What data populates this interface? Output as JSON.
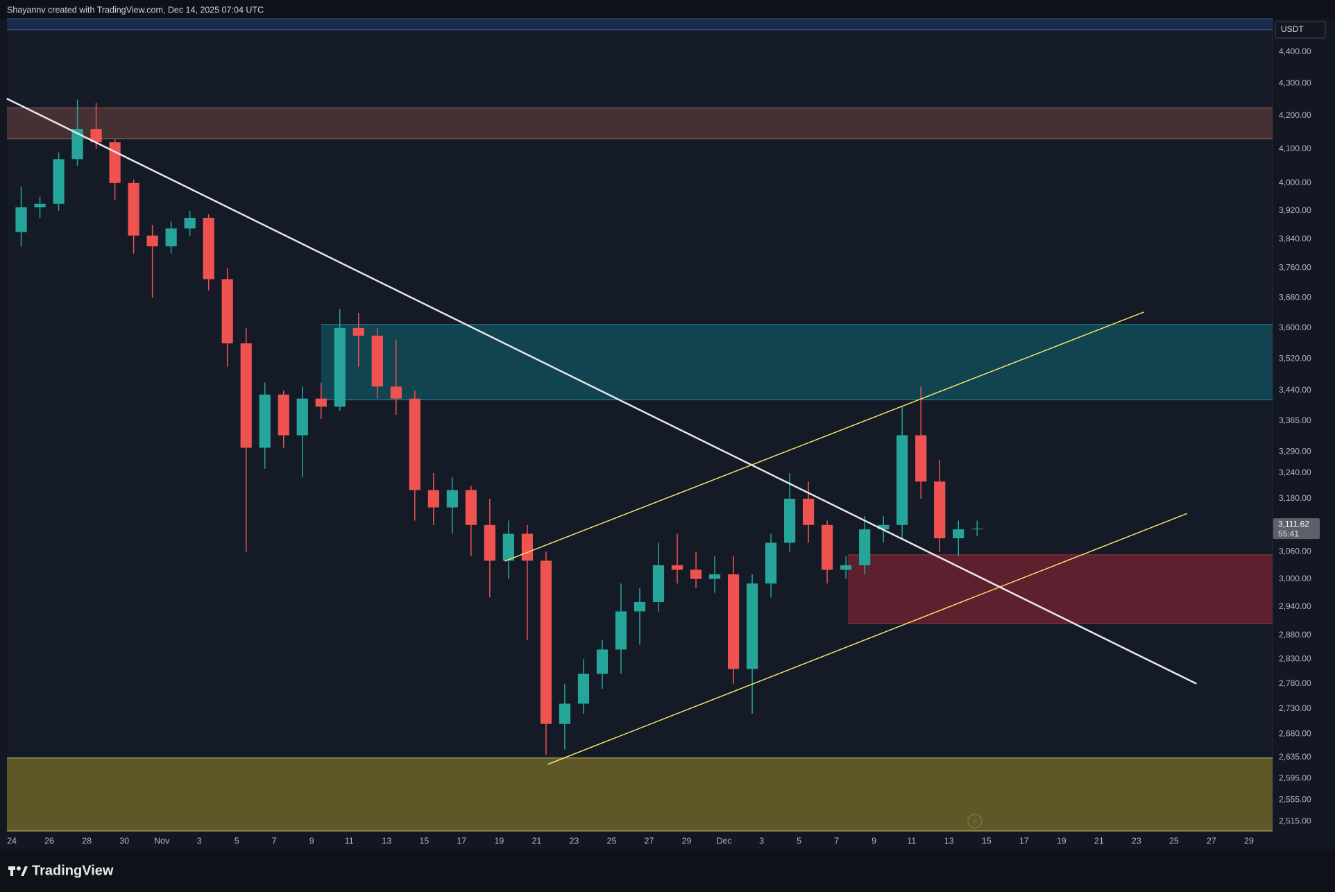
{
  "header": {
    "credit": "Shayannv created with TradingView.com, Dec 14, 2025 07:04 UTC"
  },
  "footer": {
    "brand": "TradingView"
  },
  "chart_data": {
    "type": "candlestick",
    "currency": "USDT",
    "log_scale": true,
    "grid": false,
    "up_color": "#26a69a",
    "down_color": "#ef5350",
    "categories": [
      "24",
      null,
      "26",
      null,
      "28",
      null,
      "30",
      null,
      "Nov",
      null,
      "3",
      null,
      "5",
      null,
      "7",
      null,
      "9",
      null,
      "11",
      null,
      "13",
      null,
      "15",
      null,
      "17",
      null,
      "19",
      null,
      "21",
      null,
      "23",
      null,
      "25",
      null,
      "27",
      null,
      "29",
      null,
      "Dec",
      null,
      "3",
      null,
      "5",
      null,
      "7",
      null,
      "9",
      null,
      "11",
      null,
      "13",
      null,
      "15",
      null,
      "17",
      null,
      "19",
      null,
      "21",
      null,
      "23",
      null,
      "25",
      null,
      "27",
      null,
      "29"
    ],
    "xlim": [
      -0.26,
      67.26
    ],
    "open": [
      3860,
      3930,
      3940,
      4070,
      4160,
      4120,
      4000,
      3850,
      3820,
      3870,
      3900,
      3730,
      3560,
      3300,
      3430,
      3330,
      3420,
      3400,
      3600,
      3580,
      3450,
      3420,
      3200,
      3160,
      3200,
      3120,
      3040,
      3100,
      3040,
      2700,
      2740,
      2800,
      2850,
      2930,
      2950,
      3030,
      3020,
      3000,
      3010,
      2810,
      2990,
      3080,
      3180,
      3120,
      3020,
      3030,
      3110,
      3120,
      3330,
      3220,
      3090,
      3110,
      null,
      null,
      null,
      null,
      null,
      null,
      null,
      null,
      null,
      null,
      null,
      null,
      null,
      null,
      null
    ],
    "high": [
      3990,
      3960,
      4090,
      4250,
      4240,
      4130,
      4010,
      3880,
      3890,
      3920,
      3910,
      3760,
      3600,
      3460,
      3440,
      3450,
      3460,
      3650,
      3640,
      3600,
      3570,
      3440,
      3240,
      3230,
      3210,
      3180,
      3130,
      3120,
      3060,
      2780,
      2830,
      2870,
      2990,
      2980,
      3080,
      3100,
      3060,
      3050,
      3050,
      3010,
      3100,
      3240,
      3220,
      3130,
      3050,
      3140,
      3140,
      3400,
      3450,
      3270,
      3130,
      3130,
      null,
      null,
      null,
      null,
      null,
      null,
      null,
      null,
      null,
      null,
      null,
      null,
      null,
      null,
      null
    ],
    "low": [
      3820,
      3900,
      3920,
      4050,
      4100,
      3950,
      3800,
      3680,
      3800,
      3850,
      3700,
      3500,
      3060,
      3250,
      3300,
      3230,
      3370,
      3390,
      3500,
      3420,
      3380,
      3130,
      3120,
      3100,
      3050,
      2960,
      3000,
      2870,
      2640,
      2650,
      2720,
      2770,
      2800,
      2860,
      2930,
      2990,
      2980,
      2970,
      2780,
      2720,
      2960,
      3060,
      3080,
      2990,
      3000,
      3010,
      3080,
      3090,
      3180,
      3060,
      3050,
      3095,
      null,
      null,
      null,
      null,
      null,
      null,
      null,
      null,
      null,
      null,
      null,
      null,
      null,
      null,
      null
    ],
    "close": [
      3930,
      3940,
      4070,
      4160,
      4120,
      4000,
      3850,
      3820,
      3870,
      3900,
      3730,
      3560,
      3300,
      3430,
      3330,
      3420,
      3400,
      3600,
      3580,
      3450,
      3420,
      3200,
      3160,
      3200,
      3120,
      3040,
      3100,
      3040,
      2700,
      2740,
      2800,
      2850,
      2930,
      2950,
      3030,
      3020,
      3000,
      3010,
      2810,
      2990,
      3080,
      3180,
      3120,
      3020,
      3030,
      3110,
      3120,
      3330,
      3220,
      3090,
      3110,
      3111.62,
      null,
      null,
      null,
      null,
      null,
      null,
      null,
      null,
      null,
      null,
      null,
      null,
      null,
      null,
      null
    ],
    "last_price": {
      "value": 3111.62,
      "label": "3,111.62"
    },
    "countdown": "55:41",
    "ylim": [
      2498,
      4507
    ],
    "yticks": [
      {
        "value": 4400,
        "label": "4,400.00"
      },
      {
        "value": 4300,
        "label": "4,300.00"
      },
      {
        "value": 4200,
        "label": "4,200.00"
      },
      {
        "value": 4100,
        "label": "4,100.00"
      },
      {
        "value": 4000,
        "label": "4,000.00"
      },
      {
        "value": 3920,
        "label": "3,920.00"
      },
      {
        "value": 3840,
        "label": "3,840.00"
      },
      {
        "value": 3760,
        "label": "3,760.00"
      },
      {
        "value": 3680,
        "label": "3,680.00"
      },
      {
        "value": 3600,
        "label": "3,600.00"
      },
      {
        "value": 3520,
        "label": "3,520.00"
      },
      {
        "value": 3440,
        "label": "3,440.00"
      },
      {
        "value": 3365,
        "label": "3,365.00"
      },
      {
        "value": 3290,
        "label": "3,290.00"
      },
      {
        "value": 3240,
        "label": "3,240.00"
      },
      {
        "value": 3180,
        "label": "3,180.00"
      },
      {
        "value": 3060,
        "label": "3,060.00"
      },
      {
        "value": 3000,
        "label": "3,000.00"
      },
      {
        "value": 2940,
        "label": "2,940.00"
      },
      {
        "value": 2880,
        "label": "2,880.00"
      },
      {
        "value": 2830,
        "label": "2,830.00"
      },
      {
        "value": 2780,
        "label": "2,780.00"
      },
      {
        "value": 2730,
        "label": "2,730.00"
      },
      {
        "value": 2680,
        "label": "2,680.00"
      },
      {
        "value": 2635,
        "label": "2,635.00"
      },
      {
        "value": 2595,
        "label": "2,595.00"
      },
      {
        "value": 2555,
        "label": "2,555.00"
      },
      {
        "value": 2515,
        "label": "2,515.00"
      }
    ],
    "zones": [
      {
        "low": 4471,
        "high": 4507,
        "start": -0.26,
        "color": "#1c2f52",
        "edge": "#3a6fc4"
      },
      {
        "low": 4131,
        "high": 4224,
        "start": -0.26,
        "color": "#4e3536",
        "edge": "#b36d5e"
      },
      {
        "low": 3417,
        "high": 3609,
        "start": 16.5,
        "color": "#104b58",
        "edge": "#2aa7b8"
      },
      {
        "low": 2905,
        "high": 3053,
        "start": 44.6,
        "color": "#6a2230",
        "edge": "#c0394f"
      },
      {
        "low": 2498,
        "high": 2634,
        "start": -0.26,
        "color": "#6b6329",
        "edge": "#e8e07a"
      }
    ],
    "trendlines": [
      {
        "x": [
          -0.27,
          63.2
        ],
        "y": [
          4253,
          2780
        ],
        "color": "#e6e6ea"
      },
      {
        "x": [
          26.3,
          60.4
        ],
        "y": [
          3039,
          3642
        ],
        "color": "#f2e36a"
      },
      {
        "x": [
          28.6,
          62.7
        ],
        "y": [
          2622,
          3146
        ],
        "color": "#f2e36a"
      }
    ]
  }
}
